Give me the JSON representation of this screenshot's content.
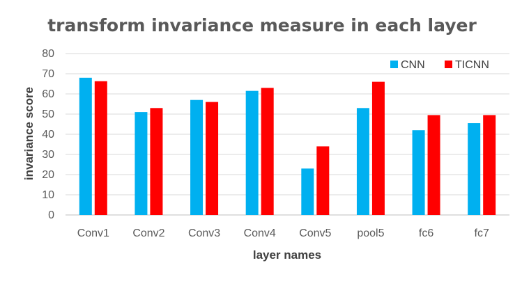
{
  "chart_data": {
    "type": "bar",
    "title": "transform invariance measure in each layer",
    "xlabel": "layer names",
    "ylabel": "invariance score",
    "ylim": [
      0,
      80
    ],
    "yticks": [
      0,
      10,
      20,
      30,
      40,
      50,
      60,
      70,
      80
    ],
    "categories": [
      "Conv1",
      "Conv2",
      "Conv3",
      "Conv4",
      "Conv5",
      "pool5",
      "fc6",
      "fc7"
    ],
    "series": [
      {
        "name": "CNN",
        "color": "#00b0f0",
        "values": [
          68,
          51,
          57,
          61.5,
          23,
          53,
          42,
          45.5
        ]
      },
      {
        "name": "TICNN",
        "color": "#ff0000",
        "values": [
          66.3,
          53,
          56,
          63,
          34,
          66,
          49.5,
          49.5
        ]
      }
    ],
    "grid": true,
    "legend_position": "top-right"
  }
}
